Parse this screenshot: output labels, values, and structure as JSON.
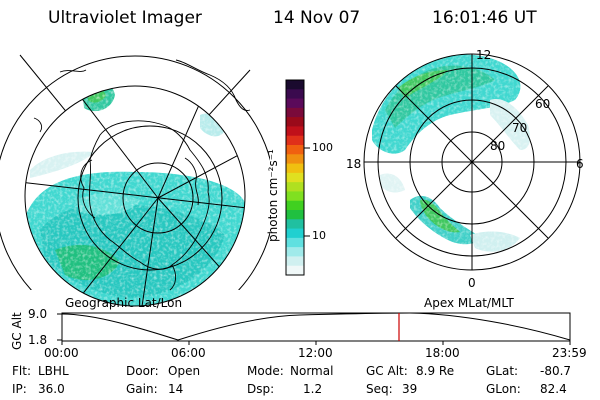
{
  "header": {
    "instrument": "Ultraviolet Imager",
    "date": "14 Nov 07",
    "time": "16:01:46 UT"
  },
  "colorbar": {
    "label": "photon cm⁻²s⁻¹",
    "ticks": [
      "100",
      "10"
    ],
    "ramp_colors": [
      "#1a0a2e",
      "#3a0a4e",
      "#5a0a5a",
      "#7a0a3a",
      "#9a0a1a",
      "#c0101a",
      "#e0301a",
      "#f06010",
      "#f09010",
      "#f0c010",
      "#e0e020",
      "#b0e020",
      "#80e020",
      "#40d020",
      "#20c040",
      "#20c0a0",
      "#20d0d0",
      "#60e0e0",
      "#a0eaea",
      "#d0f0f0",
      "#f0f8f8"
    ]
  },
  "left_panel": {
    "caption": "Geographic Lat/Lon"
  },
  "right_panel": {
    "caption": "Apex MLat/MLT",
    "mlt_labels": {
      "top": "12",
      "left": "18",
      "right": "6",
      "bottom": "0"
    },
    "lat_labels": [
      "80",
      "70",
      "60"
    ]
  },
  "altitude_plot": {
    "axis_label": "GC Alt",
    "y_ticks": [
      "9.0",
      "1.8"
    ],
    "x_ticks": [
      "00:00",
      "06:00",
      "12:00",
      "18:00",
      "23:59"
    ],
    "current_time_color": "#cc0000"
  },
  "status": {
    "flt_label": "Flt:",
    "flt_value": "LBHL",
    "ip_label": "IP:",
    "ip_value": "36.0",
    "door_label": "Door:",
    "door_value": "Open",
    "gain_label": "Gain:",
    "gain_value": "14",
    "mode_label": "Mode:",
    "mode_value": "Normal",
    "dsp_label": "Dsp:",
    "dsp_value": "1.2",
    "gcalt_label": "GC Alt:",
    "gcalt_value": "8.9 Re",
    "seq_label": "Seq:",
    "seq_value": "39",
    "glat_label": "GLat:",
    "glat_value": "-80.7",
    "glon_label": "GLon:",
    "glon_value": "82.4"
  }
}
